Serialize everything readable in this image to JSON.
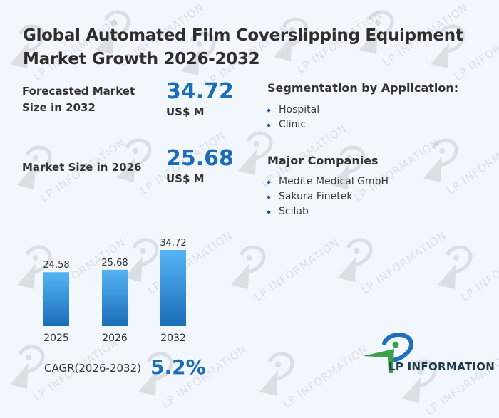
{
  "title": "Global Automated Film Coverslipping Equipment Market Growth 2026-2032",
  "forecast": {
    "label": "Forecasted Market Size in 2032",
    "label_line1": "Forecasted Market",
    "label_line2": "Size in 2032",
    "value": "34.72",
    "unit": "US$ M"
  },
  "current": {
    "label": "Market Size in 2026",
    "value": "25.68",
    "unit": "US$ M"
  },
  "segmentation": {
    "title": "Segmentation by Application:",
    "items": [
      "Hospital",
      "Clinic"
    ]
  },
  "companies": {
    "title": "Major Companies",
    "items": [
      "Medite Medical GmbH",
      "Sakura Finetek",
      "Scilab"
    ]
  },
  "cagr": {
    "label": "CAGR(2026-2032)",
    "value": "5.2%"
  },
  "logo": {
    "text": "LP INFORMATION"
  },
  "watermark_text": "LP INFORMATION",
  "colors": {
    "accent": "#1c6db8",
    "bar_top": "#56b4f5",
    "bar_bottom": "#1a6db8",
    "background": "#f1f7fd",
    "logo_green": "#3aa14a",
    "logo_blue": "#1f6fba"
  },
  "chart_data": {
    "type": "bar",
    "title": "",
    "xlabel": "",
    "ylabel": "",
    "categories": [
      "2025",
      "2026",
      "2032"
    ],
    "values": [
      24.58,
      25.68,
      34.72
    ],
    "value_labels": [
      "24.58",
      "25.68",
      "34.72"
    ],
    "ylim": [
      0,
      34.72
    ],
    "grid": false,
    "legend": "none"
  }
}
